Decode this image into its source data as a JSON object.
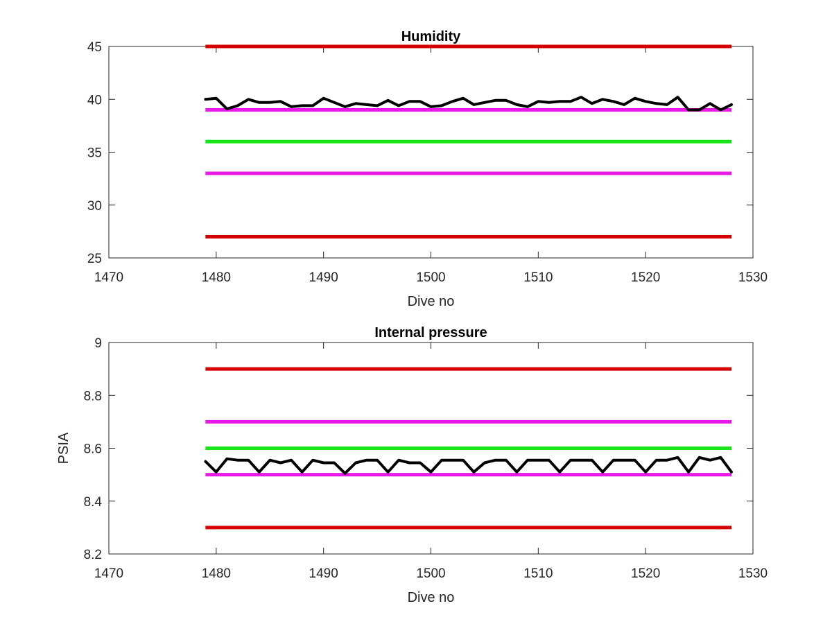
{
  "chart_data": [
    {
      "type": "line",
      "title": "Humidity",
      "xlabel": "Dive no",
      "ylabel": "",
      "xlim": [
        1470,
        1530
      ],
      "ylim": [
        25,
        45
      ],
      "xticks": [
        1470,
        1480,
        1490,
        1500,
        1510,
        1520,
        1530
      ],
      "yticks": [
        25,
        30,
        35,
        40,
        45
      ],
      "grid": false,
      "reference_lines": [
        {
          "y": 45,
          "x_range": [
            1479,
            1528
          ],
          "color": "#d40000"
        },
        {
          "y": 39,
          "x_range": [
            1479,
            1528
          ],
          "color": "#e619e6"
        },
        {
          "y": 36,
          "x_range": [
            1479,
            1528
          ],
          "color": "#19e619"
        },
        {
          "y": 33,
          "x_range": [
            1479,
            1528
          ],
          "color": "#e619e6"
        },
        {
          "y": 27,
          "x_range": [
            1479,
            1528
          ],
          "color": "#d40000"
        }
      ],
      "series": [
        {
          "color": "#000000",
          "x": [
            1479,
            1480,
            1481,
            1482,
            1483,
            1484,
            1485,
            1486,
            1487,
            1488,
            1489,
            1490,
            1491,
            1492,
            1493,
            1494,
            1495,
            1496,
            1497,
            1498,
            1499,
            1500,
            1501,
            1502,
            1503,
            1504,
            1505,
            1506,
            1507,
            1508,
            1509,
            1510,
            1511,
            1512,
            1513,
            1514,
            1515,
            1516,
            1517,
            1518,
            1519,
            1520,
            1521,
            1522,
            1523,
            1524,
            1525,
            1526,
            1527,
            1528
          ],
          "values": [
            40.0,
            40.1,
            39.1,
            39.4,
            40.0,
            39.7,
            39.7,
            39.8,
            39.3,
            39.4,
            39.4,
            40.1,
            39.7,
            39.3,
            39.6,
            39.5,
            39.4,
            39.9,
            39.4,
            39.8,
            39.8,
            39.3,
            39.4,
            39.8,
            40.1,
            39.5,
            39.7,
            39.9,
            39.9,
            39.5,
            39.3,
            39.8,
            39.7,
            39.8,
            39.8,
            40.2,
            39.6,
            40.0,
            39.8,
            39.5,
            40.1,
            39.8,
            39.6,
            39.5,
            40.2,
            39.0,
            39.0,
            39.6,
            39.0,
            39.5
          ]
        }
      ]
    },
    {
      "type": "line",
      "title": "Internal pressure",
      "xlabel": "Dive no",
      "ylabel": "PSIA",
      "xlim": [
        1470,
        1530
      ],
      "ylim": [
        8.2,
        9.0
      ],
      "xticks": [
        1470,
        1480,
        1490,
        1500,
        1510,
        1520,
        1530
      ],
      "yticks": [
        8.2,
        8.4,
        8.6,
        8.8,
        9
      ],
      "grid": false,
      "reference_lines": [
        {
          "y": 8.9,
          "x_range": [
            1479,
            1528
          ],
          "color": "#d40000"
        },
        {
          "y": 8.7,
          "x_range": [
            1479,
            1528
          ],
          "color": "#e619e6"
        },
        {
          "y": 8.6,
          "x_range": [
            1479,
            1528
          ],
          "color": "#19e619"
        },
        {
          "y": 8.5,
          "x_range": [
            1479,
            1528
          ],
          "color": "#e619e6"
        },
        {
          "y": 8.3,
          "x_range": [
            1479,
            1528
          ],
          "color": "#d40000"
        }
      ],
      "series": [
        {
          "color": "#000000",
          "x": [
            1479,
            1480,
            1481,
            1482,
            1483,
            1484,
            1485,
            1486,
            1487,
            1488,
            1489,
            1490,
            1491,
            1492,
            1493,
            1494,
            1495,
            1496,
            1497,
            1498,
            1499,
            1500,
            1501,
            1502,
            1503,
            1504,
            1505,
            1506,
            1507,
            1508,
            1509,
            1510,
            1511,
            1512,
            1513,
            1514,
            1515,
            1516,
            1517,
            1518,
            1519,
            1520,
            1521,
            1522,
            1523,
            1524,
            1525,
            1526,
            1527,
            1528
          ],
          "values": [
            8.55,
            8.51,
            8.56,
            8.555,
            8.555,
            8.51,
            8.555,
            8.545,
            8.555,
            8.51,
            8.555,
            8.545,
            8.545,
            8.505,
            8.545,
            8.555,
            8.555,
            8.51,
            8.555,
            8.545,
            8.545,
            8.51,
            8.555,
            8.555,
            8.555,
            8.51,
            8.545,
            8.555,
            8.555,
            8.51,
            8.555,
            8.555,
            8.555,
            8.51,
            8.555,
            8.555,
            8.555,
            8.51,
            8.555,
            8.555,
            8.555,
            8.51,
            8.555,
            8.555,
            8.565,
            8.51,
            8.565,
            8.555,
            8.565,
            8.51
          ]
        }
      ]
    }
  ]
}
